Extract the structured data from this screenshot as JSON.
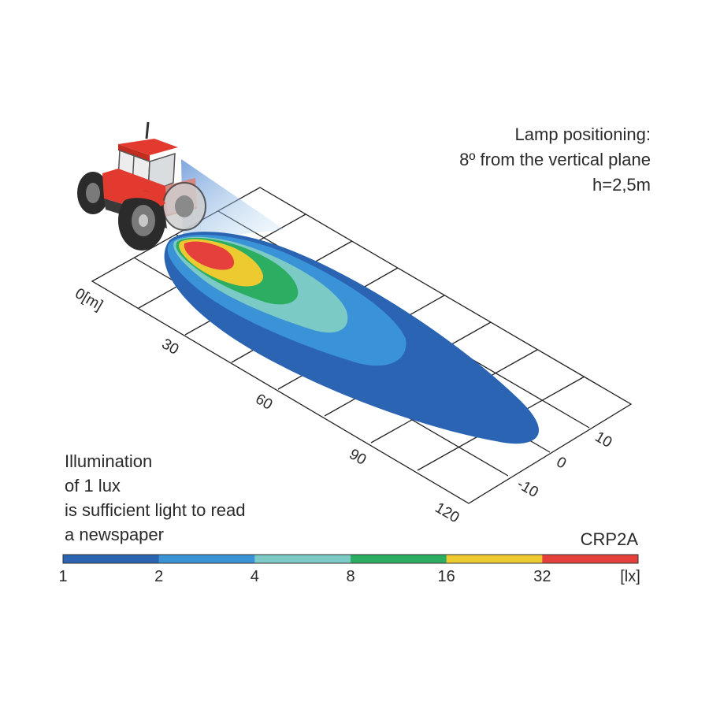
{
  "positioning": {
    "title": "Lamp positioning:",
    "angle": "8º from the vertical plane",
    "height": "h=2,5m"
  },
  "note": {
    "line1": "Illumination",
    "line2": "of 1 lux",
    "line3": "is sufficient light to read",
    "line4": "a newspaper"
  },
  "model": "CRP2A",
  "axes": {
    "distance_ticks": [
      "0[m]",
      "30",
      "60",
      "90",
      "120"
    ],
    "lateral_ticks": [
      "10",
      "0",
      "-10"
    ]
  },
  "scale": {
    "labels": [
      "1",
      "2",
      "4",
      "8",
      "16",
      "32"
    ],
    "unit": "[lx]",
    "colors": [
      "#2a64b2",
      "#3a93d6",
      "#7ccac6",
      "#2cae62",
      "#ecca30",
      "#e6403c"
    ]
  },
  "vehicle": {
    "icon": "tractor-icon",
    "color": "#e23a2e"
  }
}
